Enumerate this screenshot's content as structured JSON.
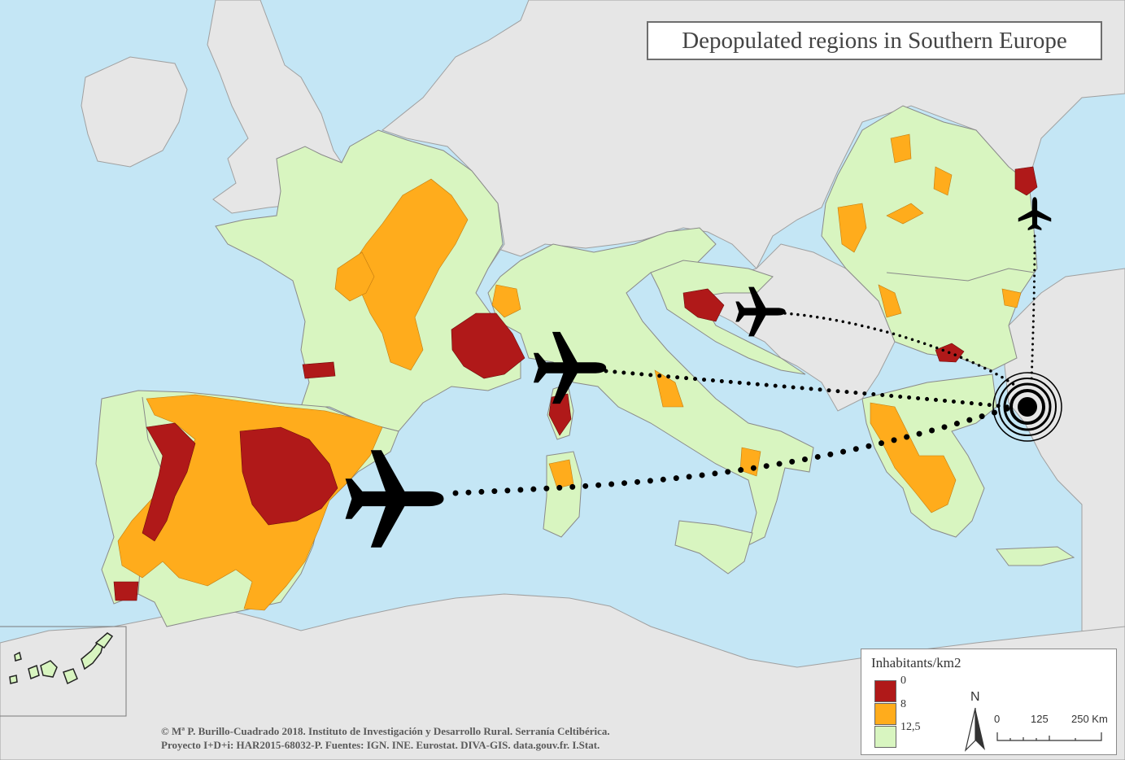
{
  "map": {
    "title": "Depopulated regions in Southern Europe",
    "colors": {
      "sea": "#c4e6f5",
      "other_land": "#e6e6e6",
      "studied_land": "#d8f5c0",
      "density_0_8": "#b01919",
      "density_8_12_5": "#ffac1c",
      "border": "#9a9a9a"
    },
    "icons": [
      "airplane-icon",
      "target-icon",
      "north-arrow-icon"
    ]
  },
  "legend": {
    "title": "Inhabitants/km2",
    "breaks": [
      "0",
      "8",
      "12,5"
    ]
  },
  "scale": {
    "labels": [
      "0",
      "125",
      "250 Km"
    ],
    "north": "N"
  },
  "credits": {
    "line1": "© Mª P. Burillo-Cuadrado 2018. Instituto de Investigación y Desarrollo Rural. Serranía Celtibérica.",
    "line2": "Proyecto I+D+i: HAR2015-68032-P. Fuentes: IGN. INE. Eurostat. DIVA-GIS. data.gouv.fr. I.Stat."
  }
}
